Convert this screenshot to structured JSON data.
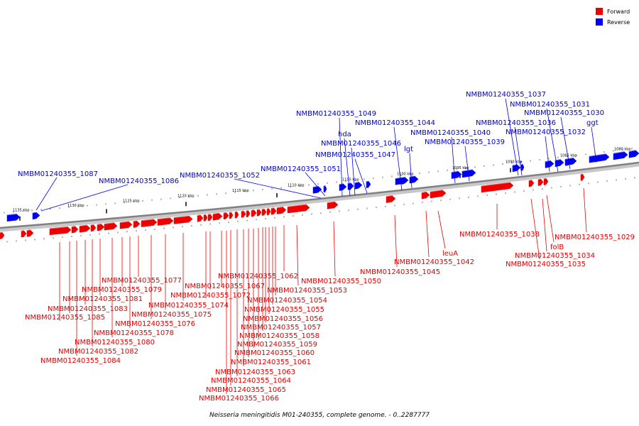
{
  "caption": "Neisseria meningitidis M01-240355, complete genome. - 0..2287777",
  "colors": {
    "forward": "#ee0000",
    "reverse": "#0000ee",
    "backbone": "#808080"
  },
  "legend": [
    {
      "label": "Forward",
      "color": "#ee0000"
    },
    {
      "label": "Reverse",
      "color": "#0000ee"
    }
  ],
  "ticks": [
    "1135 kbp",
    "1130 kbp",
    "1125 kbp",
    "1120 kbp",
    "1115 kbp",
    "1110 kbp",
    "1105 kbp",
    "1100 kbp",
    "1095 kbp",
    "1090 kbp",
    "1085 kbp",
    "1080 kbp"
  ],
  "reverse_labels": [
    "NMBM01240355_1087",
    "NMBM01240355_1086",
    "NMBM01240355_1052",
    "NMBM01240355_1051",
    "NMBM01240355_1049",
    "hda",
    "NMBM01240355_1046",
    "NMBM01240355_1047",
    "NMBM01240355_1044",
    "lgt",
    "NMBM01240355_1040",
    "NMBM01240355_1039",
    "NMBM01240355_1037",
    "NMBM01240355_1031",
    "NMBM01240355_1030",
    "NMBM01240355_1036",
    "NMBM01240355_1032",
    "ggt"
  ],
  "forward_labels": [
    "NMBM01240355_1038",
    "NMBM01240355_1029",
    "folB",
    "NMBM01240355_1034",
    "NMBM01240355_1035",
    "leuA",
    "NMBM01240355_1042",
    "NMBM01240355_1045",
    "NMBM01240355_1050",
    "NMBM01240355_1062",
    "NMBM01240355_1053",
    "NMBM01240355_1054",
    "NMBM01240355_1055",
    "NMBM01240355_1056",
    "NMBM01240355_1057",
    "NMBM01240355_1058",
    "NMBM01240355_1059",
    "NMBM01240355_1060",
    "NMBM01240355_1061",
    "NMBM01240355_1063",
    "NMBM01240355_1064",
    "NMBM01240355_1065",
    "NMBM01240355_1066",
    "NMBM01240355_1067",
    "NMBM01240355_1072",
    "NMBM01240355_1074",
    "NMBM01240355_1075",
    "NMBM01240355_1076",
    "NMBM01240355_1077",
    "NMBM01240355_1078",
    "NMBM01240355_1079",
    "NMBM01240355_1080",
    "NMBM01240355_1081",
    "NMBM01240355_1082",
    "NMBM01240355_1083",
    "NMBM01240355_1084",
    "NMBM01240355_1085"
  ]
}
